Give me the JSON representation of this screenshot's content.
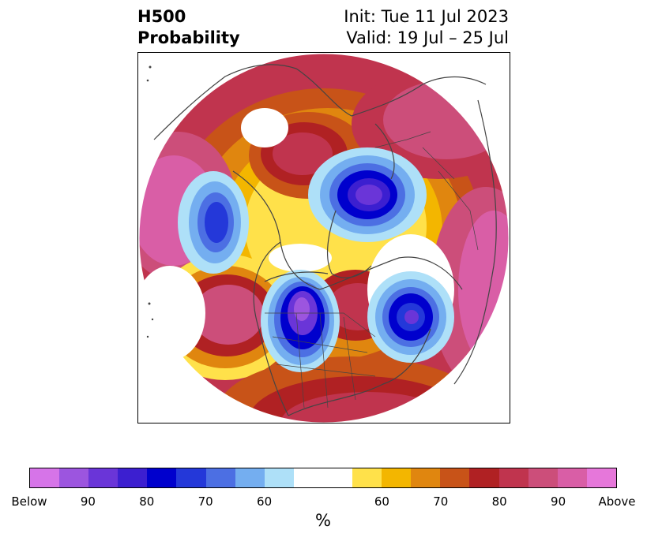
{
  "header": {
    "variable": "H500",
    "field": "Probability",
    "init": "Init: Tue 11 Jul 2023",
    "valid": "Valid: 19 Jul – 25 Jul"
  },
  "map": {
    "projection": "north-polar-stereographic",
    "features": [
      {
        "name": "arctic-low-anomaly",
        "category": "below"
      },
      {
        "name": "western-canada-low-anomaly",
        "category": "below"
      },
      {
        "name": "north-pacific-low-anomaly",
        "category": "below"
      },
      {
        "name": "north-atlantic-low-anomaly",
        "category": "below"
      },
      {
        "name": "siberia-high-anomaly",
        "category": "above"
      },
      {
        "name": "alaska-high-anomaly",
        "category": "above"
      },
      {
        "name": "greenland-high-anomaly",
        "category": "above"
      },
      {
        "name": "hudson-bay-high-anomaly",
        "category": "above"
      },
      {
        "name": "europe-high-anomaly",
        "category": "above"
      },
      {
        "name": "us-high-anomaly",
        "category": "above"
      }
    ]
  },
  "colorbar": {
    "colors": [
      "#d674e8",
      "#9c55df",
      "#6a35d8",
      "#3c1fd0",
      "#0000cd",
      "#2438d9",
      "#4c6fe3",
      "#74aef0",
      "#aee0f8",
      "#ffffff",
      "#ffe14a",
      "#f3b600",
      "#e0860f",
      "#c85318",
      "#b02123",
      "#c0344e",
      "#cc4e7a",
      "#d95ea6",
      "#e677da"
    ],
    "segment_counts": [
      1,
      1,
      1,
      1,
      1,
      1,
      1,
      1,
      1,
      2,
      1,
      1,
      1,
      1,
      1,
      1,
      1,
      1,
      1
    ],
    "tick_labels": [
      "Below",
      "90",
      "80",
      "70",
      "60",
      "60",
      "70",
      "80",
      "90",
      "Above"
    ],
    "unit": "%"
  }
}
